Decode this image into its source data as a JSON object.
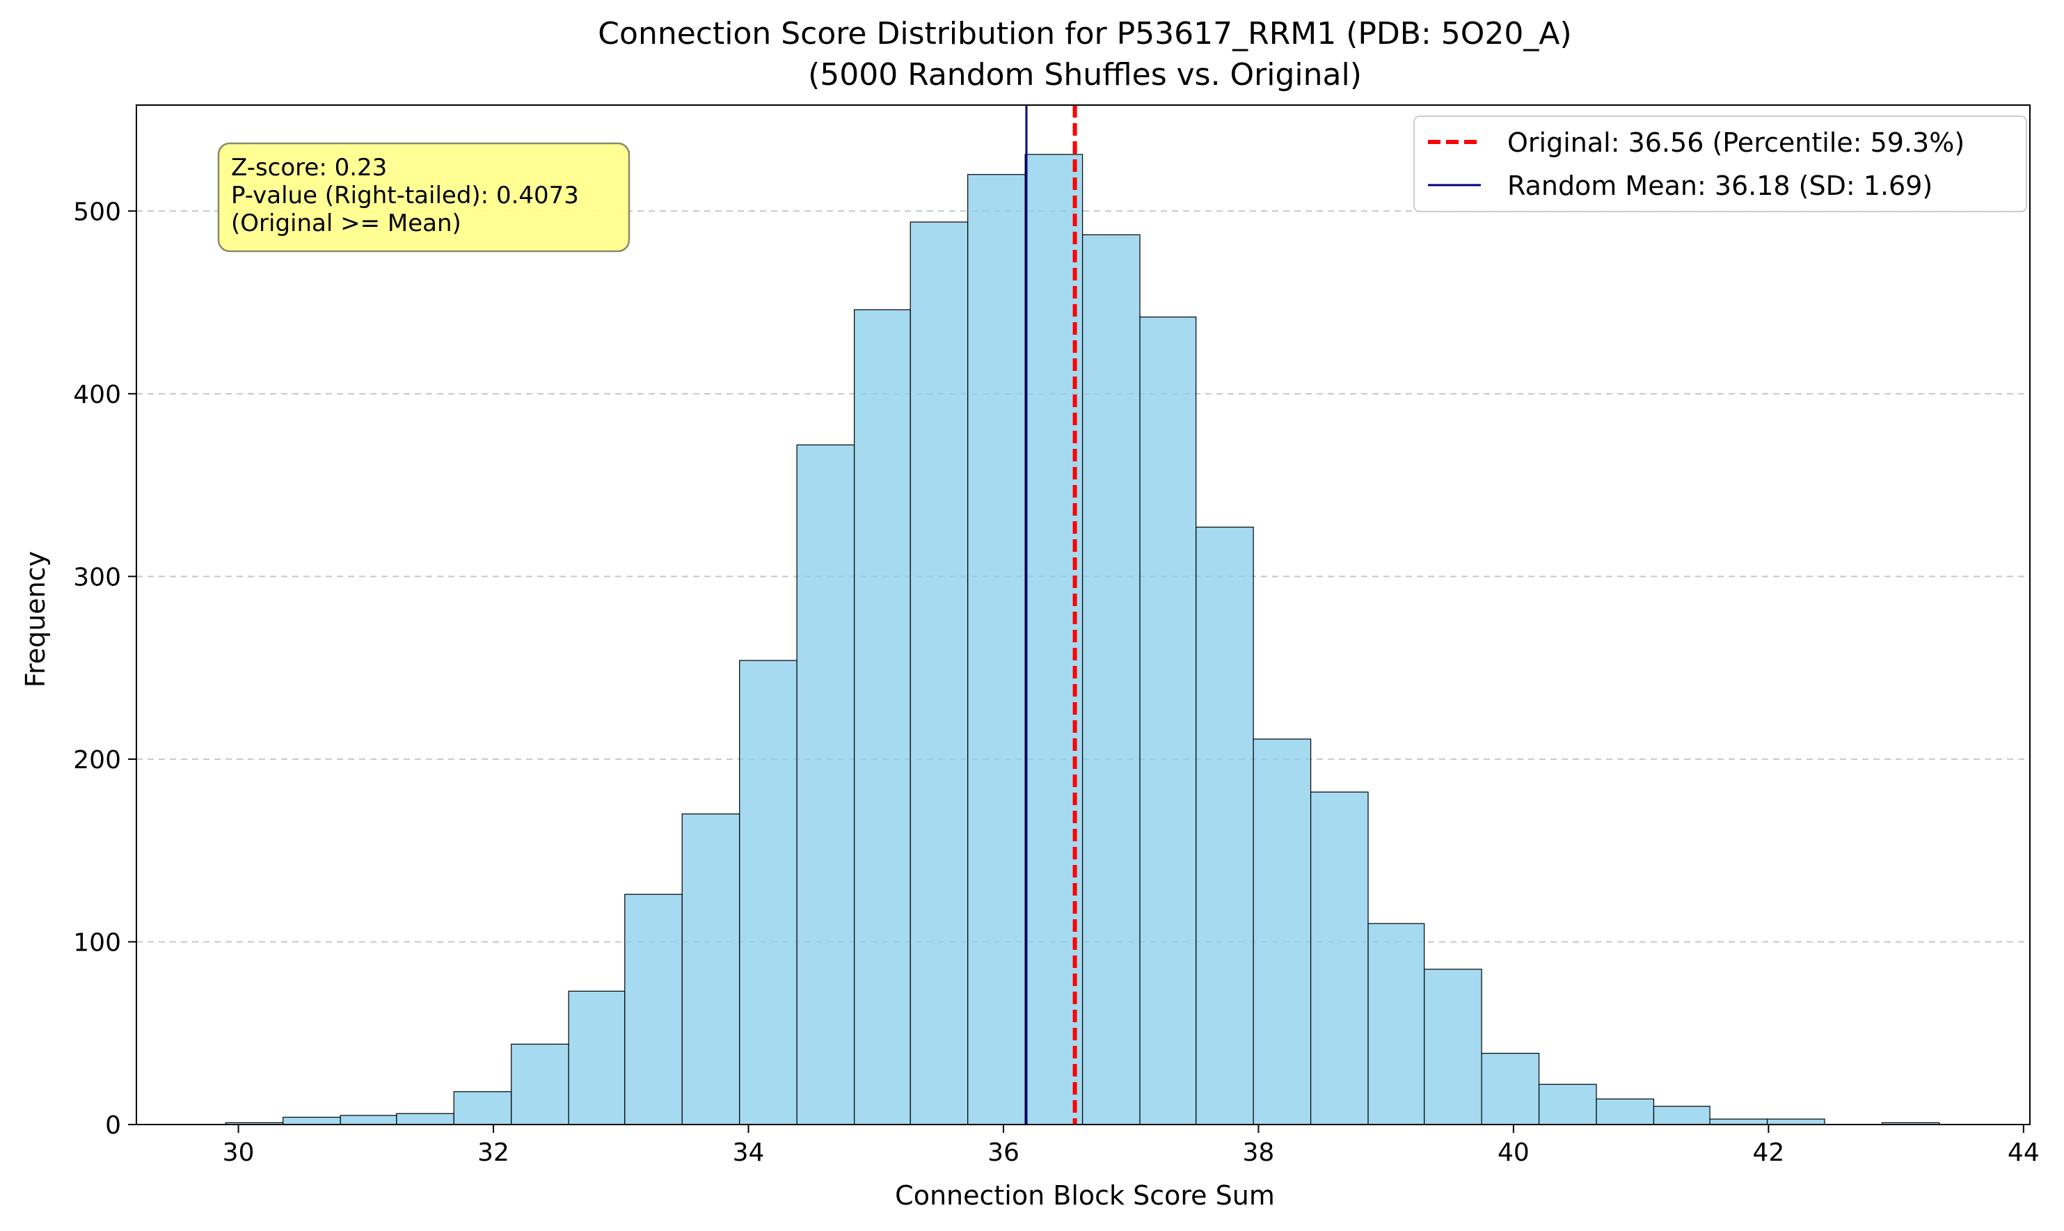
{
  "chart_data": {
    "type": "bar",
    "title": "Connection Score Distribution for P53617_RRM1 (PDB: 5O20_A)",
    "subtitle": "(5000 Random Shuffles vs. Original)",
    "xlabel": "Connection Block Score Sum",
    "ylabel": "Frequency",
    "xlim": [
      29.2,
      44.05
    ],
    "ylim": [
      0,
      558
    ],
    "xticks": [
      30,
      32,
      34,
      36,
      38,
      40,
      42,
      44
    ],
    "yticks": [
      0,
      100,
      200,
      300,
      400,
      500
    ],
    "grid": "y-dashed",
    "bin_edges": [
      29.9,
      30.35,
      30.8,
      31.24,
      31.69,
      32.14,
      32.59,
      33.03,
      33.48,
      33.93,
      34.38,
      34.83,
      35.27,
      35.72,
      36.17,
      36.62,
      37.07,
      37.51,
      37.96,
      38.41,
      38.86,
      39.3,
      39.75,
      40.2,
      40.65,
      41.1,
      41.54,
      41.99,
      42.44,
      42.89,
      43.34
    ],
    "counts": [
      1,
      4,
      5,
      6,
      18,
      44,
      73,
      126,
      170,
      254,
      372,
      446,
      494,
      520,
      531,
      487,
      442,
      327,
      211,
      182,
      110,
      85,
      39,
      22,
      14,
      10,
      3,
      3,
      0,
      1
    ],
    "bar_color": "#87CEEB",
    "original_line": {
      "x": 36.56,
      "label": "Original: 36.56 (Percentile: 59.3%)",
      "color": "#ff0000"
    },
    "mean_line": {
      "x": 36.18,
      "label": "Random Mean: 36.18 (SD: 1.69)",
      "color": "#000080"
    },
    "legend_placement": "top-right",
    "annotation": {
      "lines": [
        "Z-score: 0.23",
        "P-value (Right-tailed): 0.4073",
        "(Original >= Mean)"
      ],
      "background": "#ffff88",
      "placement": "top-left"
    }
  }
}
